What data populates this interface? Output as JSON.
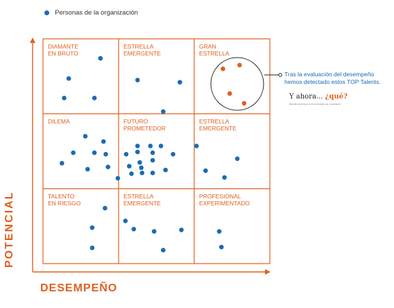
{
  "chart_data": {
    "type": "scatter",
    "title": "",
    "xlabel": "DESEMPEÑO",
    "ylabel": "POTENCIAL",
    "xlim": [
      0,
      3
    ],
    "ylim": [
      0,
      3
    ],
    "grid": "3x3",
    "legend": {
      "placement": "top-left",
      "label": "Personas de la organización",
      "color": "#1a6bb5"
    },
    "cells": [
      {
        "label": "DIAMANTE\nEN BRUTO",
        "col": 0,
        "row": 2
      },
      {
        "label": "ESTRELLA\nEMERGENTE",
        "col": 1,
        "row": 2
      },
      {
        "label": "GRAN\nESTRELLA",
        "col": 2,
        "row": 2
      },
      {
        "label": "DILEMA",
        "col": 0,
        "row": 1
      },
      {
        "label": "FUTURO\nPROMETEDOR",
        "col": 1,
        "row": 1
      },
      {
        "label": "ESTRELLA\nEMERGENTE",
        "col": 2,
        "row": 1
      },
      {
        "label": "TALENTO\nEN RIESGO",
        "col": 0,
        "row": 0
      },
      {
        "label": "ESTRELLA\nEMERGENTE",
        "col": 1,
        "row": 0
      },
      {
        "label": "PROFESIONAL\nEXPERIMENTADO",
        "col": 2,
        "row": 0
      }
    ],
    "series": [
      {
        "color": "#1a6bb5",
        "points": [
          [
            0.76,
            2.74
          ],
          [
            0.34,
            2.47
          ],
          [
            0.28,
            2.21
          ],
          [
            0.68,
            2.21
          ],
          [
            1.25,
            2.45
          ],
          [
            1.81,
            2.42
          ],
          [
            1.59,
            2.03
          ],
          [
            0.56,
            1.7
          ],
          [
            0.8,
            1.63
          ],
          [
            0.4,
            1.48
          ],
          [
            0.68,
            1.48
          ],
          [
            0.83,
            1.46
          ],
          [
            0.25,
            1.34
          ],
          [
            0.59,
            1.26
          ],
          [
            0.86,
            1.29
          ],
          [
            0.99,
            1.14
          ],
          [
            1.25,
            1.57
          ],
          [
            1.42,
            1.57
          ],
          [
            1.56,
            1.57
          ],
          [
            1.1,
            1.46
          ],
          [
            1.25,
            1.49
          ],
          [
            1.45,
            1.48
          ],
          [
            1.72,
            1.46
          ],
          [
            1.28,
            1.35
          ],
          [
            1.45,
            1.38
          ],
          [
            1.14,
            1.3
          ],
          [
            1.3,
            1.28
          ],
          [
            1.62,
            1.25
          ],
          [
            1.17,
            1.2
          ],
          [
            1.31,
            1.21
          ],
          [
            1.45,
            1.21
          ],
          [
            2.03,
            1.57
          ],
          [
            2.57,
            1.4
          ],
          [
            2.15,
            1.24
          ],
          [
            2.4,
            1.15
          ],
          [
            0.82,
            0.74
          ],
          [
            0.65,
            0.48
          ],
          [
            0.65,
            0.21
          ],
          [
            1.09,
            0.57
          ],
          [
            1.2,
            0.46
          ],
          [
            1.47,
            0.43
          ],
          [
            1.83,
            0.45
          ],
          [
            1.59,
            0.18
          ],
          [
            2.33,
            0.43
          ],
          [
            2.36,
            0.22
          ]
        ]
      },
      {
        "color": "#e0601e",
        "points": [
          [
            2.38,
            2.6
          ],
          [
            2.6,
            2.65
          ],
          [
            2.47,
            2.27
          ],
          [
            2.66,
            2.14
          ]
        ]
      }
    ],
    "annotation": {
      "lines": [
        "Tras la evaluación del desempeño",
        "hemos detectado estos TOP Talents."
      ]
    }
  },
  "logo": {
    "main": "Y ahora... ",
    "accent": "¿qué?",
    "tagline": "Descubre qué hacer con los resultados de tu evaluación"
  }
}
